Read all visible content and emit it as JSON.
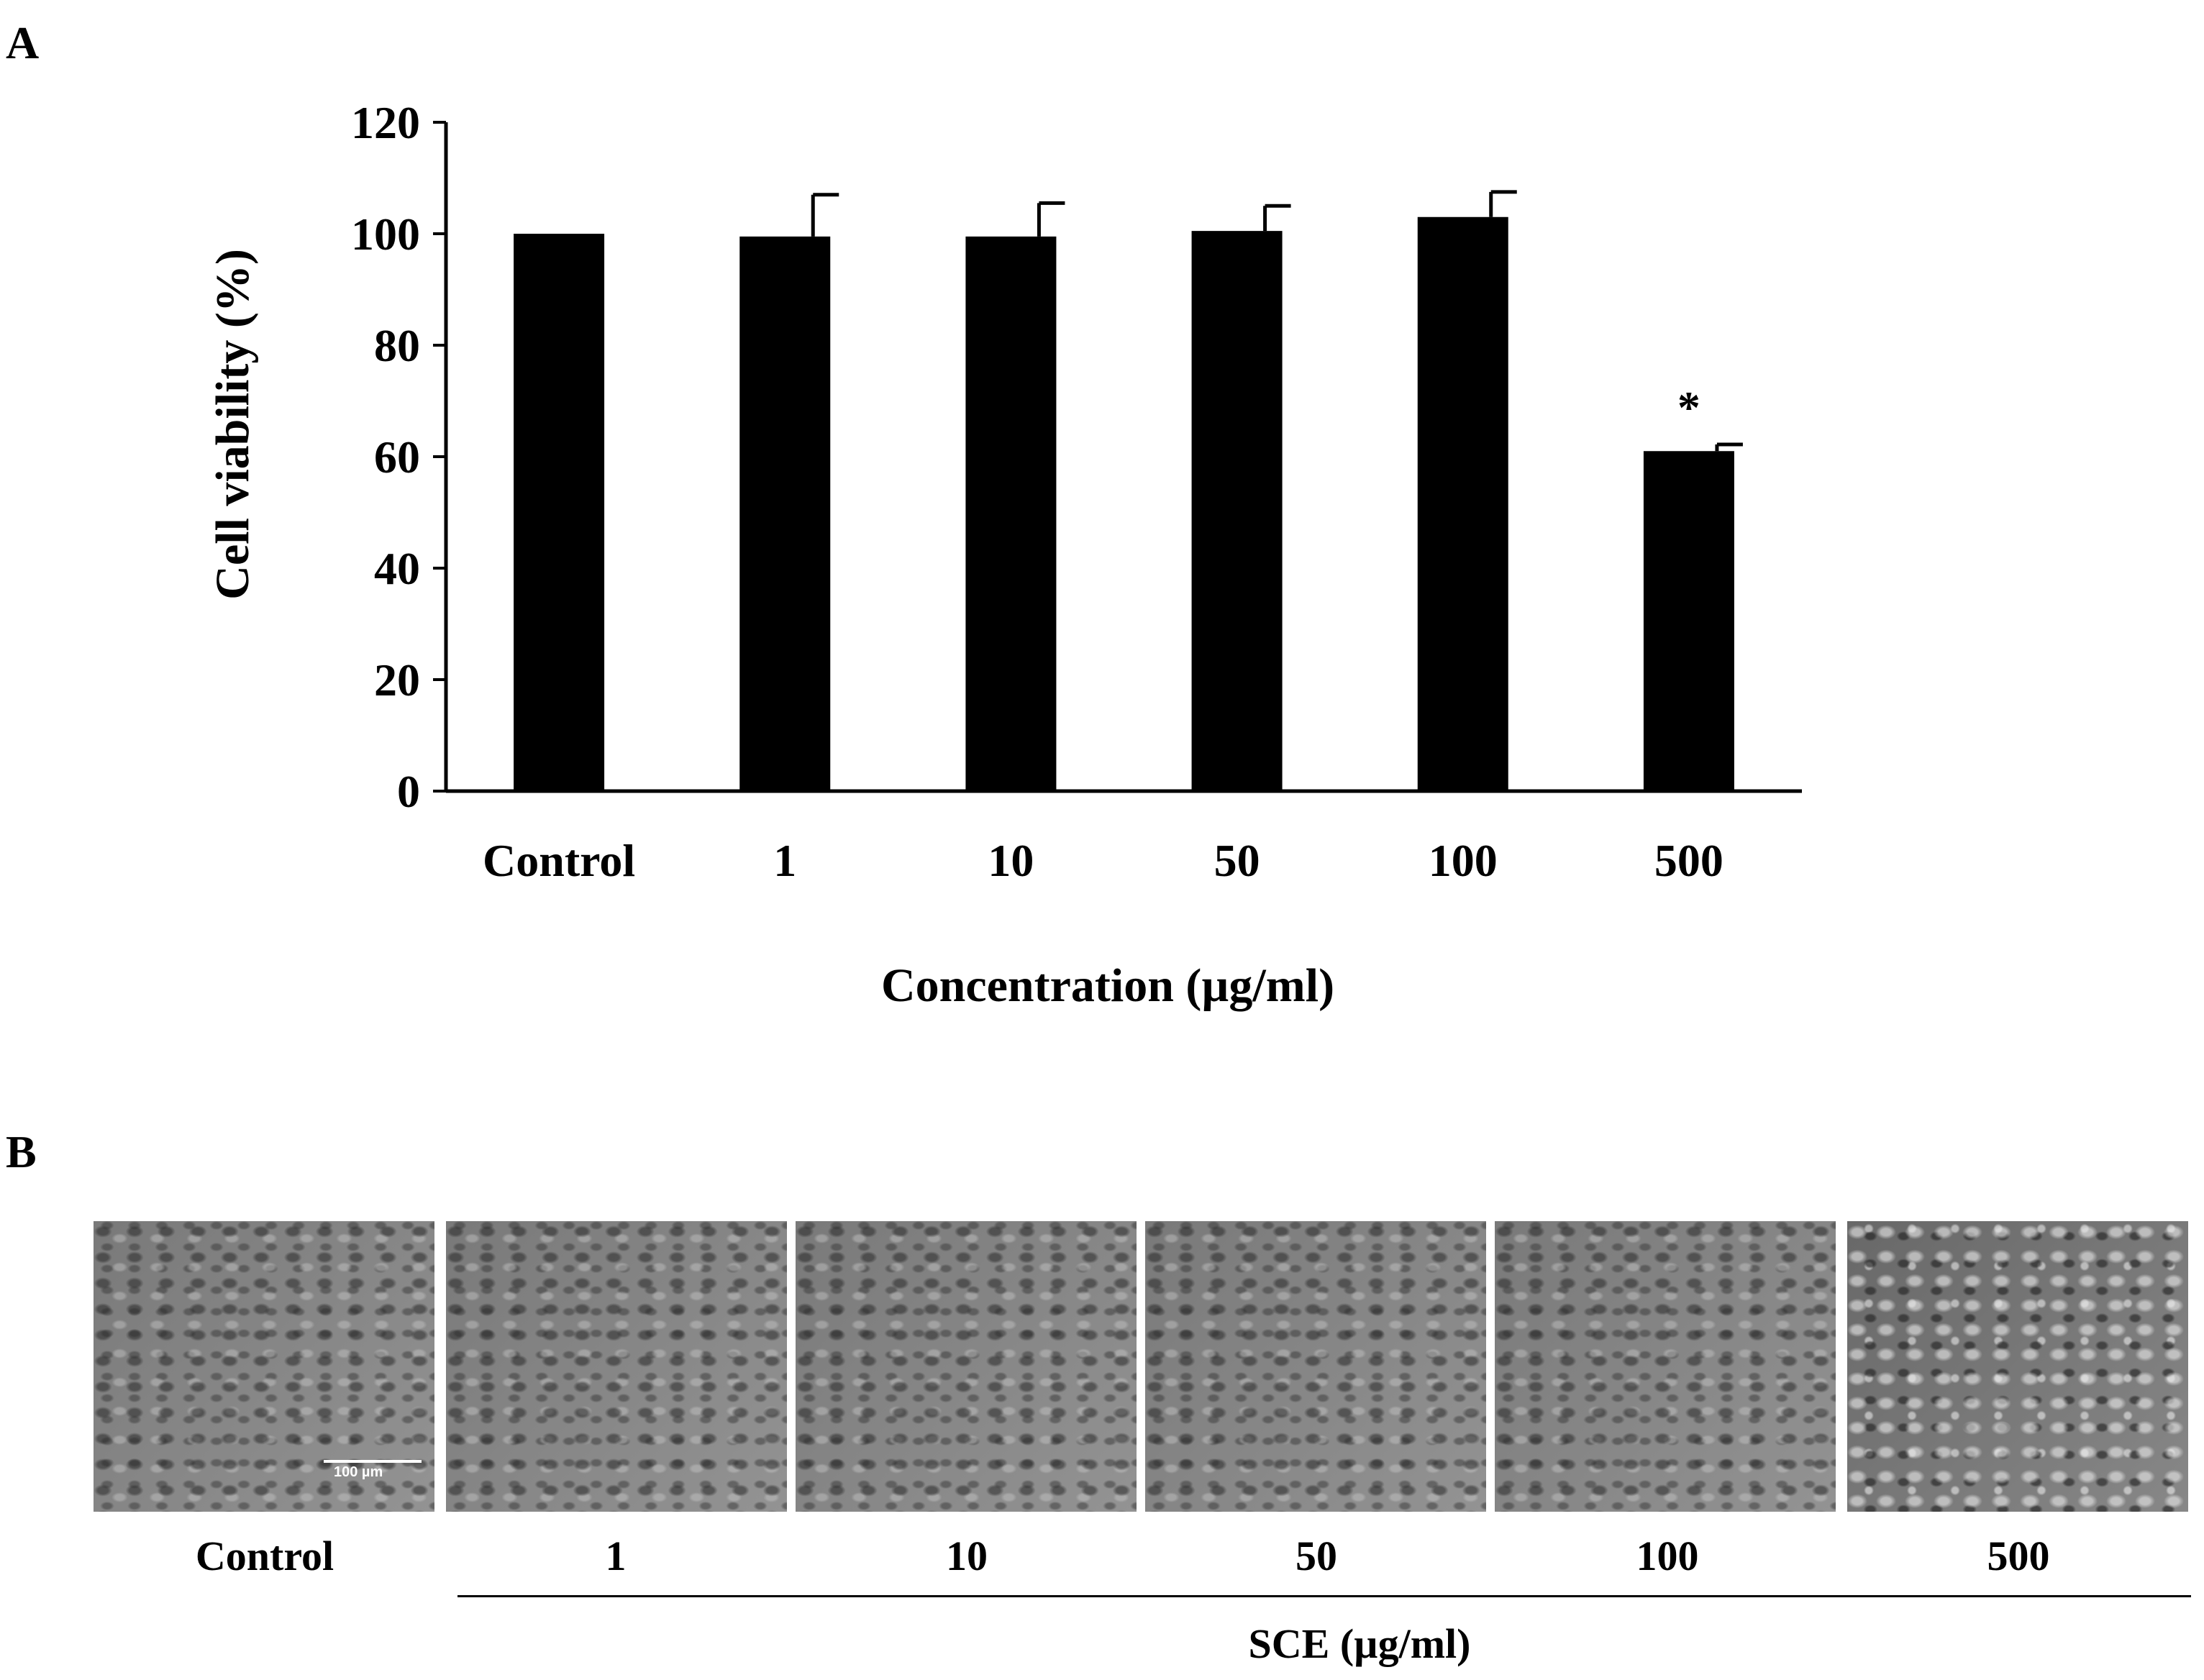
{
  "panel_a_label": "A",
  "panel_b_label": "B",
  "chart_data": {
    "type": "bar",
    "title": "",
    "categories": [
      "Control",
      "1",
      "10",
      "50",
      "100",
      "500"
    ],
    "values": [
      100,
      99.5,
      99.5,
      100.5,
      103,
      61
    ],
    "errors": [
      0,
      7.5,
      6,
      4.5,
      4.5,
      1.2
    ],
    "annotations": [
      "",
      "",
      "",
      "",
      "",
      "*"
    ],
    "ylabel": "Cell viability (%)",
    "xlabel": "Concentration (µg/ml)",
    "ylim": [
      0,
      120
    ],
    "yticks": [
      0,
      20,
      40,
      60,
      80,
      100,
      120
    ],
    "bar_color": "#000000",
    "grid": false
  },
  "micrographs": {
    "labels": [
      "Control",
      "1",
      "10",
      "50",
      "100",
      "500"
    ],
    "scale_bar_label": "100 µm",
    "group_title": "SCE (µg/ml)"
  }
}
